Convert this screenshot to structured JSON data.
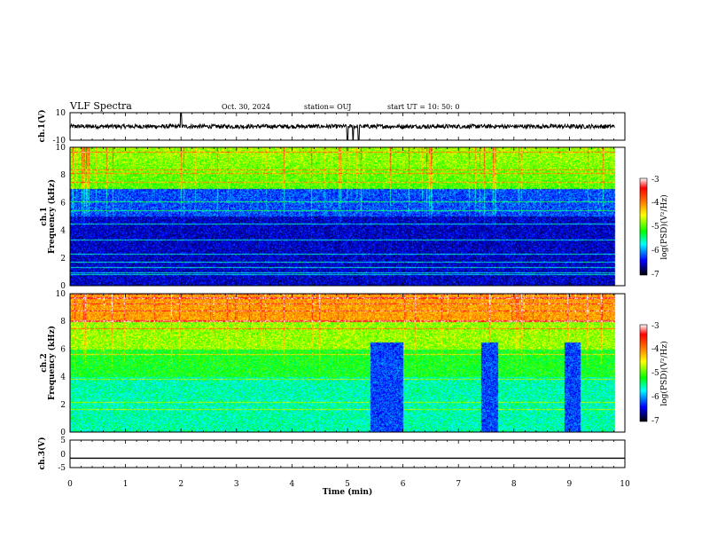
{
  "header": {
    "title": "VLF Spectra",
    "date": "Oct. 30, 2024",
    "station": "station= OUJ",
    "start": "start  UT  =   10: 50: 0"
  },
  "colors": {
    "spectrogram_scale": [
      "#00007f",
      "#0000ff",
      "#007fff",
      "#00ffff",
      "#7fff7f",
      "#ffff00",
      "#ff7f00",
      "#ff0000",
      "#7f0000"
    ]
  },
  "chart_data": [
    {
      "type": "line",
      "name": "ch1-waveform",
      "ylabel": "ch.1(V)",
      "ylim": [
        -10,
        10
      ],
      "ytick_labels": [
        "10",
        "-10"
      ],
      "xlim": [
        0,
        10
      ],
      "description_values": {
        "baseline": 0,
        "noise_amplitude": 1.5,
        "spikes": [
          {
            "x": 2.0,
            "y": 10
          },
          {
            "x": 5.0,
            "y": -10
          },
          {
            "x": 5.1,
            "y": -10
          },
          {
            "x": 5.2,
            "y": -10
          }
        ]
      }
    },
    {
      "type": "heatmap",
      "name": "ch1-spectrogram",
      "ylabel": "ch.1\nFrequency  (kHz)",
      "ylim": [
        0,
        10
      ],
      "xlim": [
        0,
        10
      ],
      "ytick_labels": [
        "0",
        "2",
        "4",
        "6",
        "8",
        "10"
      ],
      "colorbar": {
        "label": "log(PSD)(V²/Hz)",
        "range": [
          -7,
          -3
        ],
        "tick_labels": [
          "-3",
          "-4",
          "-5",
          "-6",
          "-7"
        ]
      }
    },
    {
      "type": "heatmap",
      "name": "ch2-spectrogram",
      "ylabel": "ch.2\nFrequency  (kHz)",
      "ylim": [
        0,
        10
      ],
      "xlim": [
        0,
        10
      ],
      "ytick_labels": [
        "0",
        "2",
        "4",
        "6",
        "8",
        "10"
      ],
      "gaps_min": [
        [
          5.4,
          6.0
        ],
        [
          7.4,
          7.7
        ],
        [
          8.9,
          9.2
        ]
      ],
      "colorbar": {
        "label": "log(PSD)(V²/Hz)",
        "range": [
          -7,
          -3
        ],
        "tick_labels": [
          "-3",
          "-4",
          "-5",
          "-6",
          "-7"
        ]
      }
    },
    {
      "type": "line",
      "name": "ch3-waveform",
      "ylabel": "ch.3(V)",
      "ylim": [
        -5,
        5
      ],
      "ytick_labels": [
        "5",
        "0",
        "-5"
      ],
      "xlim": [
        0,
        10
      ],
      "xlabel": "Time  (min)",
      "xtick_labels": [
        "0",
        "1",
        "2",
        "3",
        "4",
        "5",
        "6",
        "7",
        "8",
        "9",
        "10"
      ],
      "description_values": {
        "constant": -1.6
      }
    }
  ]
}
